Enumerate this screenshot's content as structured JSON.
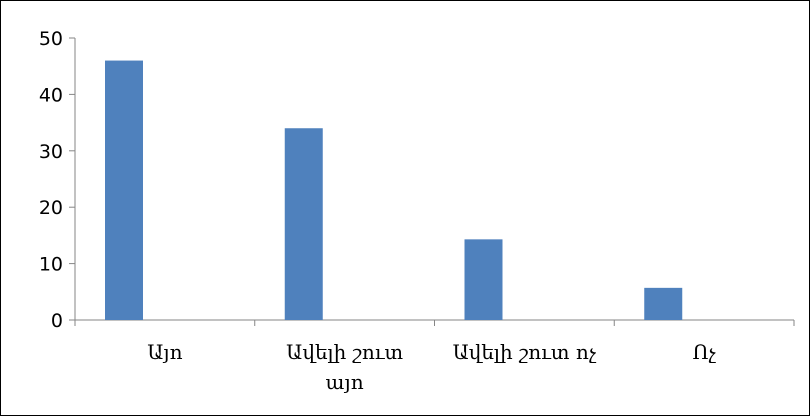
{
  "chart_data": {
    "type": "bar",
    "title": "",
    "xlabel": "",
    "ylabel": "",
    "categories": [
      [
        "Այո"
      ],
      [
        "Ավելի շուտ",
        "այո"
      ],
      [
        "Ավելի շուտ ոչ"
      ],
      [
        "Ոչ"
      ]
    ],
    "values": [
      46,
      34,
      14.3,
      5.7
    ],
    "ylim": [
      0,
      50
    ],
    "yticks": [
      "0",
      "10",
      "20",
      "30",
      "40",
      "50"
    ],
    "grid": false,
    "legend": "none",
    "bar_color": "#4F81BD"
  }
}
